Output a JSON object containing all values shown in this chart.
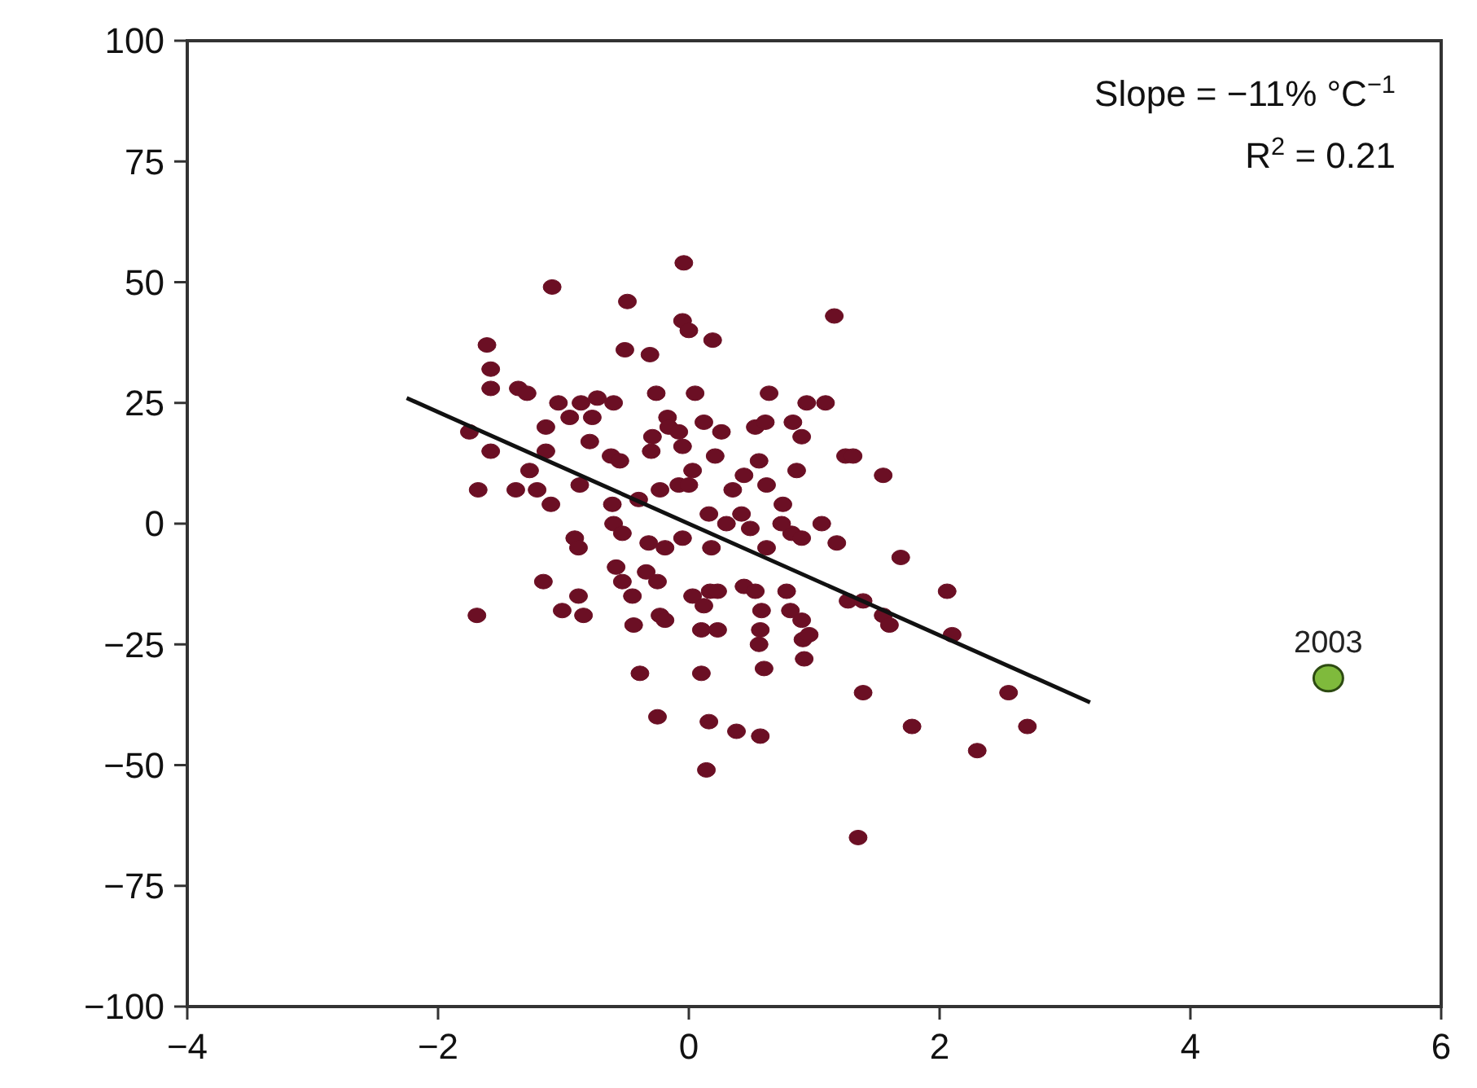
{
  "chart_data": {
    "type": "scatter",
    "xlim": [
      -4,
      6
    ],
    "ylim": [
      -100,
      100
    ],
    "xticks": [
      {
        "value": -4,
        "label": "−4"
      },
      {
        "value": -2,
        "label": "−2"
      },
      0,
      2,
      4,
      6
    ],
    "yticks": [
      {
        "value": -100,
        "label": "−100"
      },
      {
        "value": -75,
        "label": "−75"
      },
      {
        "value": -50,
        "label": "−50"
      },
      {
        "value": -25,
        "label": "−25"
      },
      0,
      25,
      50,
      75,
      100
    ],
    "grid": false,
    "annotations": [
      "Slope = −11% °C$^{−1}$",
      "R$^{2}$ = 0.21"
    ],
    "series": [
      {
        "marker": "circle",
        "color": "#6b0f24",
        "x": [
          -0.04,
          -1.09,
          -0.49,
          -0.05,
          0,
          0.19,
          1.16,
          -1.61,
          -0.51,
          -0.31,
          -1.58,
          -1.58,
          -1.36,
          -1.29,
          -1.04,
          -0.86,
          -0.73,
          -0.6,
          -0.26,
          0.05,
          0.64,
          0.94,
          1.09,
          -0.95,
          -0.77,
          -0.17,
          -0.16,
          0.12,
          0.26,
          0.53,
          0.61,
          0.83,
          0.9,
          -1.75,
          -1.58,
          -1.14,
          -1.14,
          -0.79,
          -0.62,
          -0.55,
          -0.29,
          -0.3,
          -0.08,
          -0.05,
          0.03,
          0.21,
          0.44,
          0.56,
          0.62,
          0.86,
          1.25,
          1.31,
          1.55,
          -1.68,
          -1.38,
          -1.27,
          -1.21,
          -0.87,
          -1.1,
          -0.61,
          -0.4,
          -0.23,
          -0.08,
          0.16,
          0.35,
          0.42,
          0.75,
          0,
          0.49,
          0.82,
          0.3,
          0.74,
          1.06,
          1.18,
          -0.91,
          -0.6,
          -0.88,
          -0.53,
          -0.32,
          -0.19,
          -0.05,
          0.18,
          0.62,
          0.9,
          1.69,
          -1.69,
          -1.16,
          -1.01,
          -0.88,
          -0.84,
          -0.58,
          -0.53,
          -0.45,
          -0.34,
          -0.25,
          -0.23,
          -0.19,
          -0.44,
          0.03,
          0.17,
          0.23,
          0.12,
          0.1,
          0.23,
          0.44,
          0.53,
          0.58,
          0.57,
          0.78,
          0.81,
          0.9,
          0.91,
          0.96,
          0.6,
          0.56,
          0.92,
          1.27,
          1.39,
          1.55,
          1.6,
          2.06,
          2.1,
          -0.39,
          -0.25,
          0.1,
          0.16,
          0.38,
          0.57,
          0.14,
          1.39,
          1.78,
          2.55,
          2.7,
          2.3,
          1.35
        ],
        "values": [
          54,
          49,
          46,
          42,
          40,
          38,
          43,
          37,
          36,
          35,
          32,
          28,
          28,
          27,
          25,
          25,
          26,
          25,
          27,
          27,
          27,
          25,
          25,
          22,
          22,
          22,
          20,
          21,
          19,
          20,
          21,
          21,
          18,
          19,
          15,
          20,
          15,
          17,
          14,
          13,
          18,
          15,
          19,
          16,
          11,
          14,
          10,
          13,
          8,
          11,
          14,
          14,
          10,
          7,
          7,
          11,
          7,
          8,
          4,
          4,
          5,
          7,
          8,
          2,
          7,
          2,
          4,
          8,
          -1,
          -2,
          0,
          0,
          0,
          -4,
          -3,
          0,
          -5,
          -2,
          -4,
          -5,
          -3,
          -5,
          -5,
          -3,
          -7,
          -19,
          -12,
          -18,
          -15,
          -19,
          -9,
          -12,
          -15,
          -10,
          -12,
          -19,
          -20,
          -21,
          -15,
          -14,
          -14,
          -17,
          -22,
          -22,
          -13,
          -14,
          -18,
          -22,
          -14,
          -18,
          -20,
          -24,
          -23,
          -30,
          -25,
          -28,
          -16,
          -16,
          -19,
          -21,
          -14,
          -23,
          -31,
          -40,
          -31,
          -41,
          -43,
          -44,
          -51,
          -35,
          -42,
          -35,
          -42,
          -47,
          -65
        ]
      },
      {
        "marker": "circle",
        "name": "2003",
        "color": "#7fba3c",
        "x": [
          5.1
        ],
        "values": [
          -32
        ]
      },
      {
        "type": "line",
        "marker": "none",
        "color": "#111111",
        "x": [
          -2.25,
          3.2
        ],
        "values": [
          26,
          -37
        ]
      }
    ]
  }
}
